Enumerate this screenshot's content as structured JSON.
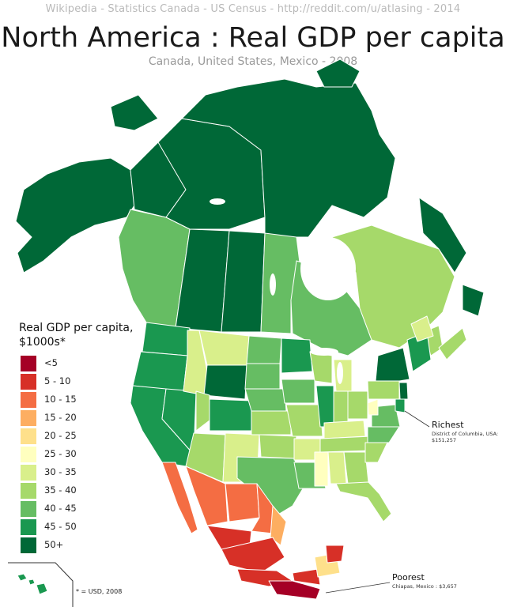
{
  "header": {
    "sources": "Wikipedia  -  Statistics Canada  -  US Census  -  http://reddit.com/u/atlasing  -  2014",
    "title": "North America : Real GDP per capita",
    "subtitle": "Canada, United States, Mexico - 2008"
  },
  "legend": {
    "title": "Real GDP per capita, $1000s*",
    "items": [
      {
        "label": "<5",
        "color": "#a50026"
      },
      {
        "label": "5 - 10",
        "color": "#d73027"
      },
      {
        "label": "10 - 15",
        "color": "#f46d43"
      },
      {
        "label": "15 - 20",
        "color": "#fdae61"
      },
      {
        "label": "20 - 25",
        "color": "#fee08b"
      },
      {
        "label": "25 - 30",
        "color": "#ffffbf"
      },
      {
        "label": "30 - 35",
        "color": "#d9ef8b"
      },
      {
        "label": "35 - 40",
        "color": "#a6d96a"
      },
      {
        "label": "40 - 45",
        "color": "#66bd63"
      },
      {
        "label": "45 - 50",
        "color": "#1a9850"
      },
      {
        "label": "50+",
        "color": "#006837"
      }
    ]
  },
  "footnote": "* = USD, 2008",
  "callouts": {
    "richest": {
      "title": "Richest",
      "detail": "District of Columbia, USA: $151,257"
    },
    "poorest": {
      "title": "Poorest",
      "detail": "Chiapas, Mexico : $3,657"
    }
  },
  "colors": {
    "border": "#ffffff",
    "lake": "#ffffff",
    "leader_line": "#333333"
  }
}
